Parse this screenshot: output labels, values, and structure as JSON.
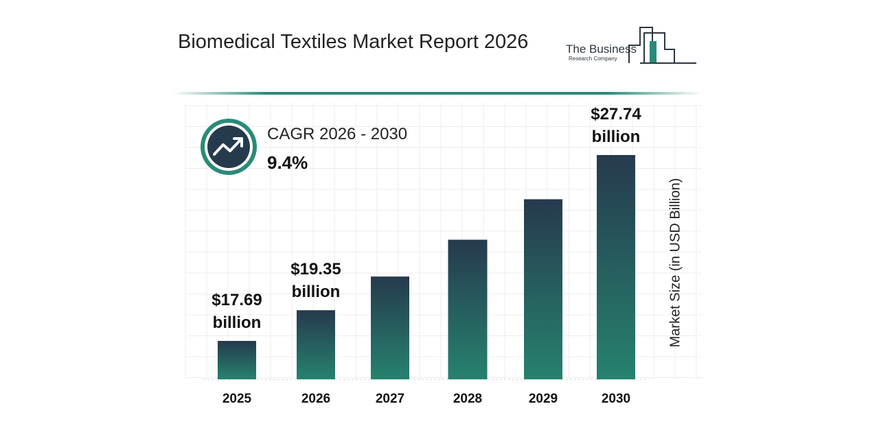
{
  "title": "Biomedical Textiles Market Report 2026",
  "logo": {
    "name": "The Business",
    "subtitle": "Research Company"
  },
  "cagr": {
    "label": "CAGR 2026 - 2030",
    "value": "9.4%",
    "icon": "trend-up-icon"
  },
  "colors": {
    "bar_top": "#263a4e",
    "bar_bottom": "#26826e",
    "accent": "#2a8a78",
    "badge_ring": "#2a8a78",
    "badge_fill": "#263a4e"
  },
  "chart_data": {
    "type": "bar",
    "categories": [
      "2025",
      "2026",
      "2027",
      "2028",
      "2029",
      "2030"
    ],
    "values": [
      17.69,
      19.35,
      21.17,
      23.16,
      25.35,
      27.74
    ],
    "data_labels": [
      [
        "$17.69",
        "billion"
      ],
      [
        "$19.35",
        "billion"
      ],
      null,
      null,
      null,
      [
        "$27.74",
        "billion"
      ]
    ],
    "ylabel": "Market Size (in USD Billion)",
    "xlabel": "",
    "grid": true
  }
}
